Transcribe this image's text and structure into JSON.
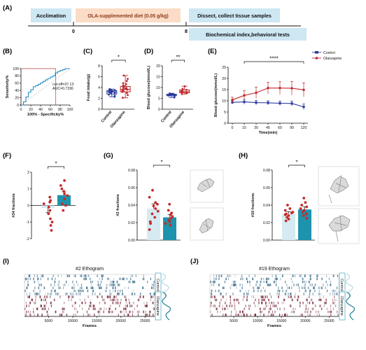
{
  "colors": {
    "control": "#2b3a9c",
    "olanzapine": "#c0282d",
    "bar_control": "#d5eaf1",
    "bar_olanzapine": "#1e93ad",
    "diet_box": "#fbdcc7",
    "acclimation_box": "#cde7f3",
    "heat_control": "#3d6e8c",
    "heat_olanzapine": "#7a2c3c",
    "roc_line": "#2a8fc9",
    "roc_marker": "#b83a3a"
  },
  "panels": {
    "A": {
      "label": "(A)",
      "acclimation": "Acclimation",
      "diet": "OLA-supplemented diet (0.05 g/kg)",
      "dissect": "Dissect, collect tissue samples",
      "biochem": "Biochemical index,behavioral tests",
      "tick0": "0",
      "tick8": "8"
    },
    "B": {
      "label": "(B)"
    },
    "C": {
      "label": "(C)"
    },
    "D": {
      "label": "(D)"
    },
    "E": {
      "label": "(E)"
    },
    "F": {
      "label": "(F)"
    },
    "G": {
      "label": "(G)"
    },
    "H": {
      "label": "(H)"
    },
    "I": {
      "label": "(I)"
    },
    "J": {
      "label": "(J)"
    }
  },
  "chart_data": [
    {
      "id": "B",
      "type": "line",
      "xlabel": "100% - Specificity%",
      "ylabel": "Sensitivity%",
      "xticks": [
        "0",
        "20",
        "40",
        "60",
        "80",
        "100"
      ],
      "yticks": [
        "0",
        "20",
        "40",
        "60",
        "80",
        "100"
      ],
      "xlim": [
        0,
        100
      ],
      "ylim": [
        0,
        100
      ],
      "annotation": [
        "cut-off=37.13",
        "AUC=0.7336"
      ],
      "x": [
        0,
        5,
        5,
        10,
        10,
        15,
        15,
        20,
        20,
        25,
        25,
        30,
        30,
        35,
        35,
        40,
        40,
        45,
        45,
        50,
        50,
        55,
        55,
        60,
        60,
        65,
        65,
        70,
        70,
        75,
        75,
        80,
        80,
        85,
        85,
        90,
        90,
        100
      ],
      "y": [
        0,
        0,
        9,
        9,
        22,
        22,
        35,
        35,
        42,
        42,
        50,
        50,
        53,
        53,
        57,
        57,
        61,
        61,
        65,
        65,
        69,
        69,
        73,
        73,
        77,
        77,
        80,
        80,
        88,
        88,
        92,
        92,
        95,
        95,
        97,
        97,
        100,
        100
      ],
      "cutoff_point": [
        71,
        100
      ]
    },
    {
      "id": "C",
      "type": "box",
      "ylabel": "Food intake(g)",
      "yticks": [
        "0",
        "2",
        "4",
        "6",
        "8"
      ],
      "ylim": [
        0,
        8
      ],
      "categories": [
        "Control",
        "Olanzapine"
      ],
      "boxes": [
        {
          "min": 2.3,
          "q1": 2.8,
          "median": 3.2,
          "q3": 3.45,
          "max": 3.7
        },
        {
          "min": 2.1,
          "q1": 3.2,
          "median": 3.65,
          "q3": 4.2,
          "max": 6.2
        }
      ],
      "points": [
        [
          2.3,
          2.5,
          2.7,
          2.9,
          3.0,
          3.1,
          3.2,
          3.2,
          3.3,
          3.4,
          3.45,
          3.5,
          3.6,
          3.7
        ],
        [
          2.1,
          2.6,
          3.0,
          3.2,
          3.3,
          3.5,
          3.6,
          3.7,
          3.8,
          3.9,
          4.0,
          4.2,
          4.4,
          4.6,
          4.8,
          5.2,
          5.6,
          6.2
        ]
      ],
      "significance": "*"
    },
    {
      "id": "D",
      "type": "box",
      "ylabel": "Blood glucose(mmol/L)",
      "yticks": [
        "0",
        "5",
        "10",
        "15",
        "20"
      ],
      "ylim": [
        0,
        20
      ],
      "categories": [
        "Control",
        "Olanzapine"
      ],
      "boxes": [
        {
          "min": 5.4,
          "q1": 6.2,
          "median": 6.6,
          "q3": 6.9,
          "max": 7.3
        },
        {
          "min": 7.0,
          "q1": 7.6,
          "median": 8.1,
          "q3": 8.9,
          "max": 10.6
        }
      ],
      "points": [
        [
          5.4,
          6.0,
          6.3,
          6.5,
          6.6,
          6.7,
          6.8,
          6.9,
          7.1,
          7.3
        ],
        [
          7.0,
          7.4,
          7.7,
          8.0,
          8.2,
          8.5,
          8.9,
          9.4,
          10.6
        ]
      ],
      "significance": "**"
    },
    {
      "id": "E",
      "type": "line",
      "xlabel": "Time(min)",
      "ylabel": "Blood glucose(mmol/L)",
      "x": [
        0,
        15,
        30,
        45,
        60,
        90,
        120
      ],
      "xticks": [
        "0",
        "15",
        "30",
        "45",
        "60",
        "90",
        "120"
      ],
      "yticks": [
        "0",
        "5",
        "10",
        "15",
        "20",
        "25"
      ],
      "ylim": [
        0,
        25
      ],
      "series": [
        {
          "name": "Control",
          "values": [
            9.3,
            9.5,
            9.2,
            9.1,
            8.9,
            8.8,
            7.3
          ],
          "errors": [
            0.8,
            1.1,
            1.0,
            0.9,
            1.0,
            1.1,
            1.3
          ]
        },
        {
          "name": "Olanzapine",
          "values": [
            10.4,
            12.4,
            13.6,
            15.7,
            15.7,
            15.6,
            14.9
          ],
          "errors": [
            1.2,
            2.1,
            2.5,
            2.6,
            2.8,
            3.0,
            3.1
          ]
        }
      ],
      "significance": "****",
      "legend": "top-right"
    },
    {
      "id": "F",
      "type": "bar",
      "ylabel": "#34 fractions",
      "yticks": [
        "-2",
        "-1",
        "0",
        "1",
        "2"
      ],
      "ylim": [
        -2,
        2
      ],
      "series": [
        {
          "values": [
            -0.15
          ],
          "errors": [
            0.28
          ],
          "points": [
            -1.5,
            -1.2,
            -1.0,
            -0.8,
            -0.5,
            -0.3,
            -0.1,
            0.1,
            0.2,
            0.3,
            0.5
          ]
        },
        {
          "values": [
            0.62
          ],
          "errors": [
            0.2
          ],
          "points": [
            -0.3,
            0.0,
            0.1,
            0.4,
            0.6,
            0.7,
            0.85,
            1.0,
            1.2,
            1.5
          ]
        }
      ],
      "significance": "*"
    },
    {
      "id": "G",
      "type": "bar",
      "ylabel": "#2 fractions",
      "yticks": [
        "0.00",
        "0.02",
        "0.04",
        "0.06",
        "0.08"
      ],
      "ylim": [
        0,
        0.08
      ],
      "series": [
        {
          "values": [
            0.036
          ],
          "errors": [
            0.0055
          ],
          "points": [
            0.012,
            0.019,
            0.021,
            0.026,
            0.03,
            0.033,
            0.036,
            0.039,
            0.041,
            0.043,
            0.049,
            0.057
          ]
        },
        {
          "values": [
            0.026
          ],
          "errors": [
            0.003
          ],
          "points": [
            0.017,
            0.019,
            0.021,
            0.023,
            0.025,
            0.027,
            0.029,
            0.031,
            0.034,
            0.041
          ]
        }
      ],
      "significance": "*"
    },
    {
      "id": "H",
      "type": "bar",
      "ylabel": "#19 fractions",
      "yticks": [
        "0.00",
        "0.02",
        "0.04",
        "0.06",
        "0.08"
      ],
      "ylim": [
        0,
        0.08
      ],
      "series": [
        {
          "values": [
            0.03
          ],
          "errors": [
            0.0025
          ],
          "points": [
            0.022,
            0.024,
            0.026,
            0.028,
            0.029,
            0.03,
            0.031,
            0.032,
            0.034,
            0.036,
            0.04
          ]
        },
        {
          "values": [
            0.035
          ],
          "errors": [
            0.003
          ],
          "points": [
            0.025,
            0.028,
            0.03,
            0.032,
            0.034,
            0.036,
            0.038,
            0.04,
            0.043,
            0.048
          ]
        }
      ],
      "significance": "*"
    },
    {
      "id": "I",
      "type": "heatmap",
      "title": "#2 Ethogram",
      "xlabel": "Frames",
      "xticks": [
        "5000",
        "10000",
        "15000",
        "20000",
        "25000"
      ],
      "xlim": [
        0,
        27000
      ],
      "groups": [
        "Control",
        "Olanzapine"
      ]
    },
    {
      "id": "J",
      "type": "heatmap",
      "title": "#19 Ethogram",
      "xlabel": "Frames",
      "xticks": [
        "5000",
        "10000",
        "15000",
        "20000",
        "25000"
      ],
      "xlim": [
        0,
        27000
      ],
      "groups": [
        "Control",
        "Olanzapine"
      ]
    }
  ]
}
